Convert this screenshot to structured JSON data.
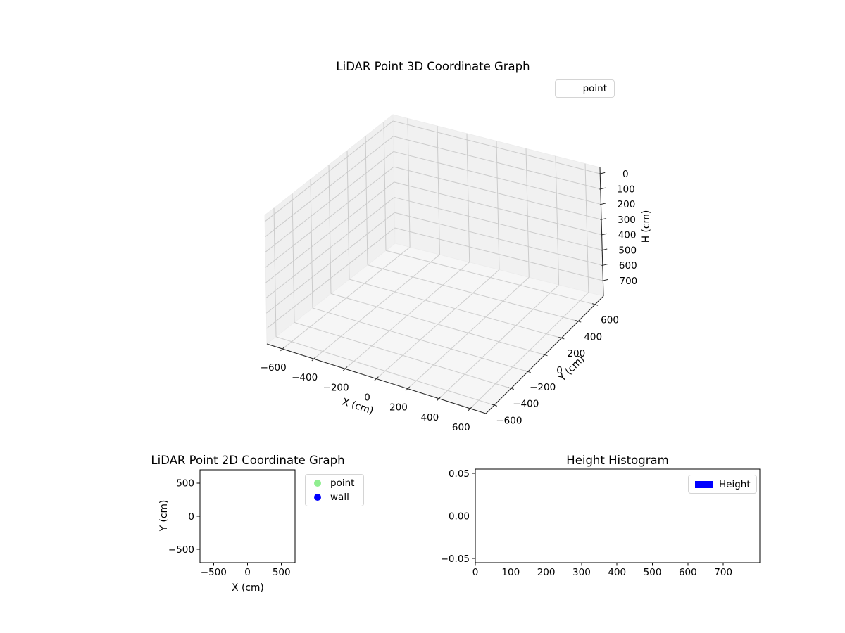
{
  "figure": {
    "background": "#ffffff",
    "kind": "matplotlib-figure"
  },
  "chart_data": [
    {
      "id": "lidar-3d",
      "type": "scatter",
      "projection": "3d",
      "title": "LiDAR Point 3D Coordinate Graph",
      "xlabel": "X (cm)",
      "ylabel": "Y (cm)",
      "zlabel": "H (cm)",
      "xlim": [
        -700,
        700
      ],
      "ylim": [
        -700,
        700
      ],
      "zlim": [
        -35,
        735
      ],
      "z_axis_inverted": true,
      "xticks": [
        -600,
        -400,
        -200,
        0,
        200,
        400,
        600
      ],
      "yticks": [
        -600,
        -400,
        -200,
        0,
        200,
        400,
        600
      ],
      "zticks": [
        0,
        100,
        200,
        300,
        400,
        500,
        600,
        700
      ],
      "grid": true,
      "pane_color": "#f0f0f0",
      "legend": {
        "position": "upper-right-outside",
        "items": [
          {
            "label": "point",
            "marker": "invisible"
          }
        ]
      },
      "series": [
        {
          "name": "point",
          "points": []
        }
      ]
    },
    {
      "id": "lidar-2d",
      "type": "scatter",
      "title": "LiDAR Point 2D Coordinate Graph",
      "xlabel": "X (cm)",
      "ylabel": "Y (cm)",
      "xlim": [
        -700,
        700
      ],
      "ylim": [
        -700,
        700
      ],
      "xticks": [
        -500,
        0,
        500
      ],
      "yticks": [
        500,
        0,
        -500
      ],
      "grid": false,
      "legend": {
        "position": "right-outside",
        "items": [
          {
            "label": "point",
            "marker": "circle",
            "color": "#90ee90"
          },
          {
            "label": "wall",
            "marker": "circle",
            "color": "#0000ff"
          }
        ]
      },
      "series": [
        {
          "name": "point",
          "points": []
        },
        {
          "name": "wall",
          "points": []
        }
      ]
    },
    {
      "id": "height-histogram",
      "type": "bar",
      "title": "Height Histogram",
      "xlabel": "",
      "ylabel": "",
      "xlim": [
        0,
        803
      ],
      "ylim": [
        -0.055,
        0.055
      ],
      "xticks": [
        0,
        100,
        200,
        300,
        400,
        500,
        600,
        700
      ],
      "yticks": [
        0.05,
        0,
        -0.05
      ],
      "ytick_format": "2dp",
      "grid": false,
      "bar_color": "#0000ff",
      "legend": {
        "position": "upper-right-inside",
        "items": [
          {
            "label": "Height",
            "marker": "rect",
            "color": "#0000ff"
          }
        ]
      },
      "values": []
    }
  ]
}
